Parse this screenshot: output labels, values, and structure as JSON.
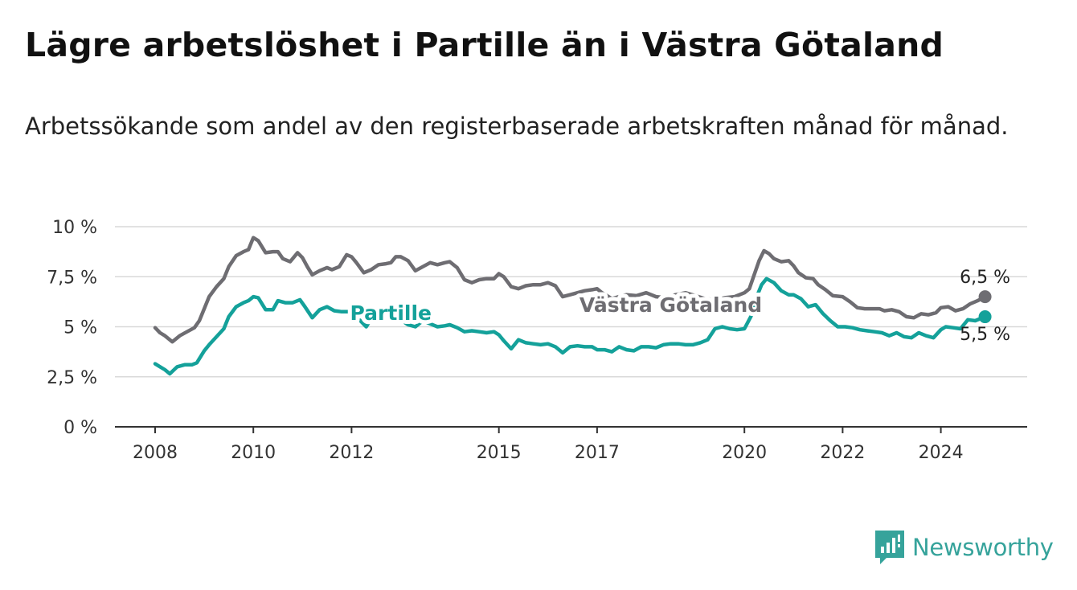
{
  "title": "Lägre arbetslöshet i Partille än i Västra Götaland",
  "subtitle": "Arbetssökande som andel av den registerbaserade arbetskraften månad för månad.",
  "brand": {
    "name": "Newsworthy",
    "icon": "newsworthy-bar-chart-icon",
    "color": "#36a39b"
  },
  "chart_data": {
    "type": "line",
    "ylim": [
      0,
      10
    ],
    "yticks": [
      0,
      2.5,
      5,
      7.5,
      10
    ],
    "ytick_labels": [
      "0 %",
      "2,5 %",
      "5 %",
      "7,5 %",
      "10 %"
    ],
    "xticks": [
      2008,
      2010,
      2012,
      2015,
      2017,
      2020,
      2022,
      2024
    ],
    "xtick_labels": [
      "2008",
      "2010",
      "2012",
      "2015",
      "2017",
      "2020",
      "2022",
      "2024"
    ],
    "xlim": [
      2007.2,
      2025.8
    ],
    "grid": true,
    "series": [
      {
        "name": "Västra Götaland",
        "color": "#6e6d72",
        "end_label": "6,5 %",
        "points": [
          [
            2008.0,
            4.95
          ],
          [
            2008.1,
            4.7
          ],
          [
            2008.2,
            4.55
          ],
          [
            2008.35,
            4.25
          ],
          [
            2008.5,
            4.55
          ],
          [
            2008.65,
            4.75
          ],
          [
            2008.8,
            4.95
          ],
          [
            2008.9,
            5.3
          ],
          [
            2009.0,
            5.9
          ],
          [
            2009.1,
            6.5
          ],
          [
            2009.25,
            7.0
          ],
          [
            2009.4,
            7.4
          ],
          [
            2009.5,
            8.0
          ],
          [
            2009.65,
            8.55
          ],
          [
            2009.8,
            8.75
          ],
          [
            2009.9,
            8.85
          ],
          [
            2010.0,
            9.45
          ],
          [
            2010.1,
            9.3
          ],
          [
            2010.25,
            8.7
          ],
          [
            2010.4,
            8.75
          ],
          [
            2010.5,
            8.75
          ],
          [
            2010.6,
            8.4
          ],
          [
            2010.75,
            8.25
          ],
          [
            2010.9,
            8.7
          ],
          [
            2011.0,
            8.45
          ],
          [
            2011.1,
            8.0
          ],
          [
            2011.2,
            7.6
          ],
          [
            2011.35,
            7.8
          ],
          [
            2011.5,
            7.95
          ],
          [
            2011.6,
            7.85
          ],
          [
            2011.75,
            8.0
          ],
          [
            2011.9,
            8.6
          ],
          [
            2012.0,
            8.5
          ],
          [
            2012.1,
            8.2
          ],
          [
            2012.25,
            7.7
          ],
          [
            2012.4,
            7.85
          ],
          [
            2012.55,
            8.1
          ],
          [
            2012.7,
            8.15
          ],
          [
            2012.8,
            8.2
          ],
          [
            2012.9,
            8.5
          ],
          [
            2013.0,
            8.5
          ],
          [
            2013.15,
            8.3
          ],
          [
            2013.3,
            7.8
          ],
          [
            2013.45,
            8.0
          ],
          [
            2013.6,
            8.2
          ],
          [
            2013.75,
            8.1
          ],
          [
            2013.9,
            8.2
          ],
          [
            2014.0,
            8.25
          ],
          [
            2014.15,
            7.95
          ],
          [
            2014.3,
            7.35
          ],
          [
            2014.45,
            7.2
          ],
          [
            2014.6,
            7.35
          ],
          [
            2014.75,
            7.4
          ],
          [
            2014.9,
            7.4
          ],
          [
            2015.0,
            7.65
          ],
          [
            2015.1,
            7.5
          ],
          [
            2015.25,
            7.0
          ],
          [
            2015.4,
            6.9
          ],
          [
            2015.55,
            7.05
          ],
          [
            2015.7,
            7.1
          ],
          [
            2015.85,
            7.1
          ],
          [
            2016.0,
            7.2
          ],
          [
            2016.15,
            7.05
          ],
          [
            2016.3,
            6.5
          ],
          [
            2016.45,
            6.6
          ],
          [
            2016.6,
            6.7
          ],
          [
            2016.75,
            6.8
          ],
          [
            2016.9,
            6.85
          ],
          [
            2017.0,
            6.9
          ],
          [
            2017.1,
            6.7
          ],
          [
            2017.3,
            6.4
          ],
          [
            2017.45,
            6.5
          ],
          [
            2017.6,
            6.6
          ],
          [
            2017.8,
            6.55
          ],
          [
            2018.0,
            6.7
          ],
          [
            2018.2,
            6.5
          ],
          [
            2018.4,
            6.45
          ],
          [
            2018.6,
            6.6
          ],
          [
            2018.8,
            6.7
          ],
          [
            2019.0,
            6.55
          ],
          [
            2019.2,
            6.4
          ],
          [
            2019.4,
            6.35
          ],
          [
            2019.6,
            6.45
          ],
          [
            2019.8,
            6.5
          ],
          [
            2020.0,
            6.7
          ],
          [
            2020.1,
            6.9
          ],
          [
            2020.2,
            7.6
          ],
          [
            2020.3,
            8.3
          ],
          [
            2020.4,
            8.8
          ],
          [
            2020.5,
            8.65
          ],
          [
            2020.6,
            8.4
          ],
          [
            2020.75,
            8.25
          ],
          [
            2020.9,
            8.3
          ],
          [
            2021.0,
            8.05
          ],
          [
            2021.1,
            7.7
          ],
          [
            2021.25,
            7.45
          ],
          [
            2021.4,
            7.4
          ],
          [
            2021.5,
            7.1
          ],
          [
            2021.65,
            6.85
          ],
          [
            2021.8,
            6.55
          ],
          [
            2022.0,
            6.5
          ],
          [
            2022.15,
            6.25
          ],
          [
            2022.3,
            5.95
          ],
          [
            2022.45,
            5.9
          ],
          [
            2022.6,
            5.9
          ],
          [
            2022.75,
            5.9
          ],
          [
            2022.85,
            5.8
          ],
          [
            2023.0,
            5.85
          ],
          [
            2023.15,
            5.75
          ],
          [
            2023.3,
            5.5
          ],
          [
            2023.45,
            5.45
          ],
          [
            2023.6,
            5.65
          ],
          [
            2023.75,
            5.6
          ],
          [
            2023.9,
            5.7
          ],
          [
            2024.0,
            5.95
          ],
          [
            2024.15,
            6.0
          ],
          [
            2024.3,
            5.8
          ],
          [
            2024.45,
            5.9
          ],
          [
            2024.6,
            6.15
          ],
          [
            2024.75,
            6.3
          ],
          [
            2024.9,
            6.5
          ]
        ]
      },
      {
        "name": "Partille",
        "color": "#14a19a",
        "end_label": "5,5 %",
        "points": [
          [
            2008.0,
            3.15
          ],
          [
            2008.1,
            3.0
          ],
          [
            2008.2,
            2.85
          ],
          [
            2008.3,
            2.65
          ],
          [
            2008.45,
            3.0
          ],
          [
            2008.6,
            3.1
          ],
          [
            2008.75,
            3.1
          ],
          [
            2008.85,
            3.2
          ],
          [
            2009.0,
            3.8
          ],
          [
            2009.1,
            4.1
          ],
          [
            2009.25,
            4.5
          ],
          [
            2009.4,
            4.9
          ],
          [
            2009.5,
            5.5
          ],
          [
            2009.65,
            6.0
          ],
          [
            2009.8,
            6.2
          ],
          [
            2009.9,
            6.3
          ],
          [
            2010.0,
            6.5
          ],
          [
            2010.1,
            6.45
          ],
          [
            2010.25,
            5.85
          ],
          [
            2010.4,
            5.85
          ],
          [
            2010.5,
            6.3
          ],
          [
            2010.65,
            6.2
          ],
          [
            2010.8,
            6.2
          ],
          [
            2010.95,
            6.35
          ],
          [
            2011.05,
            6.0
          ],
          [
            2011.2,
            5.45
          ],
          [
            2011.35,
            5.85
          ],
          [
            2011.5,
            6.0
          ],
          [
            2011.65,
            5.8
          ],
          [
            2011.8,
            5.75
          ],
          [
            2011.95,
            5.75
          ],
          [
            2012.1,
            5.5
          ],
          [
            2012.3,
            5.0
          ],
          [
            2012.45,
            5.6
          ],
          [
            2012.6,
            5.6
          ],
          [
            2012.75,
            5.5
          ],
          [
            2012.9,
            5.4
          ],
          [
            2013.0,
            5.35
          ],
          [
            2013.15,
            5.1
          ],
          [
            2013.3,
            5.0
          ],
          [
            2013.45,
            5.3
          ],
          [
            2013.6,
            5.15
          ],
          [
            2013.75,
            5.0
          ],
          [
            2013.9,
            5.05
          ],
          [
            2014.0,
            5.1
          ],
          [
            2014.15,
            4.95
          ],
          [
            2014.3,
            4.75
          ],
          [
            2014.45,
            4.8
          ],
          [
            2014.6,
            4.75
          ],
          [
            2014.75,
            4.7
          ],
          [
            2014.9,
            4.75
          ],
          [
            2015.0,
            4.6
          ],
          [
            2015.1,
            4.3
          ],
          [
            2015.25,
            3.9
          ],
          [
            2015.4,
            4.35
          ],
          [
            2015.55,
            4.2
          ],
          [
            2015.7,
            4.15
          ],
          [
            2015.85,
            4.1
          ],
          [
            2016.0,
            4.15
          ],
          [
            2016.15,
            4.0
          ],
          [
            2016.3,
            3.7
          ],
          [
            2016.45,
            4.0
          ],
          [
            2016.6,
            4.05
          ],
          [
            2016.75,
            4.0
          ],
          [
            2016.9,
            4.0
          ],
          [
            2017.0,
            3.85
          ],
          [
            2017.15,
            3.85
          ],
          [
            2017.3,
            3.75
          ],
          [
            2017.45,
            4.0
          ],
          [
            2017.6,
            3.85
          ],
          [
            2017.75,
            3.8
          ],
          [
            2017.9,
            4.0
          ],
          [
            2018.05,
            4.0
          ],
          [
            2018.2,
            3.95
          ],
          [
            2018.35,
            4.1
          ],
          [
            2018.5,
            4.15
          ],
          [
            2018.65,
            4.15
          ],
          [
            2018.8,
            4.1
          ],
          [
            2018.95,
            4.1
          ],
          [
            2019.1,
            4.2
          ],
          [
            2019.25,
            4.35
          ],
          [
            2019.4,
            4.9
          ],
          [
            2019.55,
            5.0
          ],
          [
            2019.7,
            4.9
          ],
          [
            2019.85,
            4.85
          ],
          [
            2020.0,
            4.9
          ],
          [
            2020.15,
            5.6
          ],
          [
            2020.25,
            6.5
          ],
          [
            2020.35,
            7.1
          ],
          [
            2020.45,
            7.4
          ],
          [
            2020.6,
            7.2
          ],
          [
            2020.75,
            6.8
          ],
          [
            2020.9,
            6.6
          ],
          [
            2021.0,
            6.6
          ],
          [
            2021.15,
            6.4
          ],
          [
            2021.3,
            6.0
          ],
          [
            2021.45,
            6.1
          ],
          [
            2021.6,
            5.65
          ],
          [
            2021.75,
            5.3
          ],
          [
            2021.9,
            5.0
          ],
          [
            2022.05,
            5.0
          ],
          [
            2022.2,
            4.95
          ],
          [
            2022.35,
            4.85
          ],
          [
            2022.5,
            4.8
          ],
          [
            2022.65,
            4.75
          ],
          [
            2022.8,
            4.7
          ],
          [
            2022.95,
            4.55
          ],
          [
            2023.1,
            4.7
          ],
          [
            2023.25,
            4.5
          ],
          [
            2023.4,
            4.45
          ],
          [
            2023.55,
            4.7
          ],
          [
            2023.7,
            4.55
          ],
          [
            2023.85,
            4.45
          ],
          [
            2024.0,
            4.85
          ],
          [
            2024.1,
            5.0
          ],
          [
            2024.25,
            4.95
          ],
          [
            2024.4,
            4.9
          ],
          [
            2024.55,
            5.35
          ],
          [
            2024.7,
            5.3
          ],
          [
            2024.9,
            5.5
          ]
        ]
      }
    ],
    "series_labels": [
      {
        "series": "Partille",
        "text": "Partille",
        "x": 2012.8,
        "y": 5.7
      },
      {
        "series": "Västra Götaland",
        "text": "Västra Götaland",
        "x": 2018.5,
        "y": 6.1
      }
    ]
  }
}
